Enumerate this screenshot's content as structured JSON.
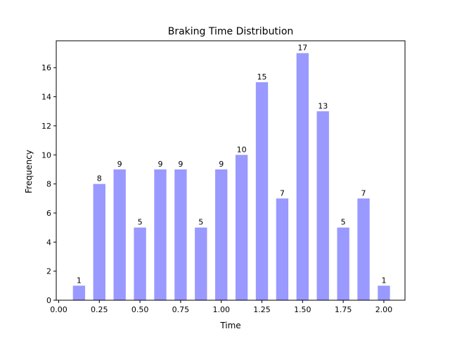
{
  "chart_data": {
    "type": "bar",
    "title": "Braking Time Distribution",
    "xlabel": "Time",
    "ylabel": "Frequency",
    "xlim": [
      -0.015,
      2.13
    ],
    "ylim": [
      0,
      17.85
    ],
    "x_ticks": [
      "0.00",
      "0.25",
      "0.50",
      "0.75",
      "1.00",
      "1.25",
      "1.50",
      "1.75",
      "2.00"
    ],
    "x_tick_values": [
      0,
      0.25,
      0.5,
      0.75,
      1.0,
      1.25,
      1.5,
      1.75,
      2.0
    ],
    "y_ticks": [
      "0",
      "2",
      "4",
      "6",
      "8",
      "10",
      "12",
      "14",
      "16"
    ],
    "y_tick_values": [
      0,
      2,
      4,
      6,
      8,
      10,
      12,
      14,
      16
    ],
    "bin_width": 0.125,
    "bar_width_fraction": 0.6,
    "grid": false,
    "bars": [
      {
        "center": 0.125,
        "value": 1,
        "label": "1"
      },
      {
        "center": 0.25,
        "value": 8,
        "label": "8"
      },
      {
        "center": 0.375,
        "value": 9,
        "label": "9"
      },
      {
        "center": 0.5,
        "value": 5,
        "label": "5"
      },
      {
        "center": 0.625,
        "value": 9,
        "label": "9"
      },
      {
        "center": 0.75,
        "value": 9,
        "label": "9"
      },
      {
        "center": 0.875,
        "value": 5,
        "label": "5"
      },
      {
        "center": 1.0,
        "value": 9,
        "label": "9"
      },
      {
        "center": 1.125,
        "value": 10,
        "label": "10"
      },
      {
        "center": 1.25,
        "value": 15,
        "label": "15"
      },
      {
        "center": 1.375,
        "value": 7,
        "label": "7"
      },
      {
        "center": 1.5,
        "value": 17,
        "label": "17"
      },
      {
        "center": 1.625,
        "value": 13,
        "label": "13"
      },
      {
        "center": 1.75,
        "value": 5,
        "label": "5"
      },
      {
        "center": 1.875,
        "value": 7,
        "label": "7"
      },
      {
        "center": 2.0,
        "value": 1,
        "label": "1"
      }
    ],
    "colors": {
      "bar": "#9999ff",
      "axis": "#000000"
    }
  }
}
